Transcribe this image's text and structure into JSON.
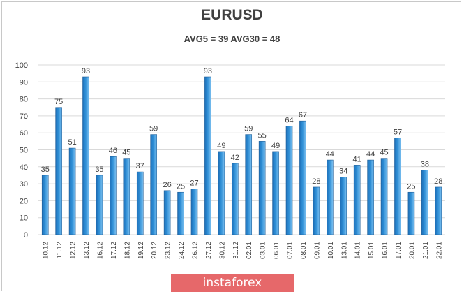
{
  "title": "EURUSD",
  "subtitle": "AVG5 = 39 AVG30 = 48",
  "watermark": "instaforex",
  "colors": {
    "bar_fill": "#2f8fd6",
    "bar_edge": "#1f5f99",
    "grid": "#d9d9d9",
    "text": "#404040",
    "watermark_bg": "#e6686a"
  },
  "chart_data": {
    "type": "bar",
    "title": "EURUSD",
    "subtitle": "AVG5 = 39 AVG30 = 48",
    "xlabel": "",
    "ylabel": "",
    "ylim": [
      0,
      100
    ],
    "yticks": [
      0,
      10,
      20,
      30,
      40,
      50,
      60,
      70,
      80,
      90,
      100
    ],
    "grid": true,
    "legend": "none",
    "categories": [
      "10.12",
      "11.12",
      "12.12",
      "13.12",
      "16.12",
      "17.12",
      "18.12",
      "19.12",
      "20.12",
      "23.12",
      "24.12",
      "26.12",
      "27.12",
      "30.12",
      "31.12",
      "02.01",
      "03.01",
      "06.01",
      "07.01",
      "08.01",
      "09.01",
      "10.01",
      "13.01",
      "14.01",
      "15.01",
      "16.01",
      "17.01",
      "20.01",
      "21.01",
      "22.01"
    ],
    "values": [
      35,
      75,
      51,
      93,
      35,
      46,
      45,
      37,
      59,
      26,
      25,
      27,
      93,
      49,
      42,
      59,
      55,
      49,
      64,
      67,
      28,
      44,
      34,
      41,
      44,
      45,
      57,
      25,
      38,
      28
    ]
  }
}
